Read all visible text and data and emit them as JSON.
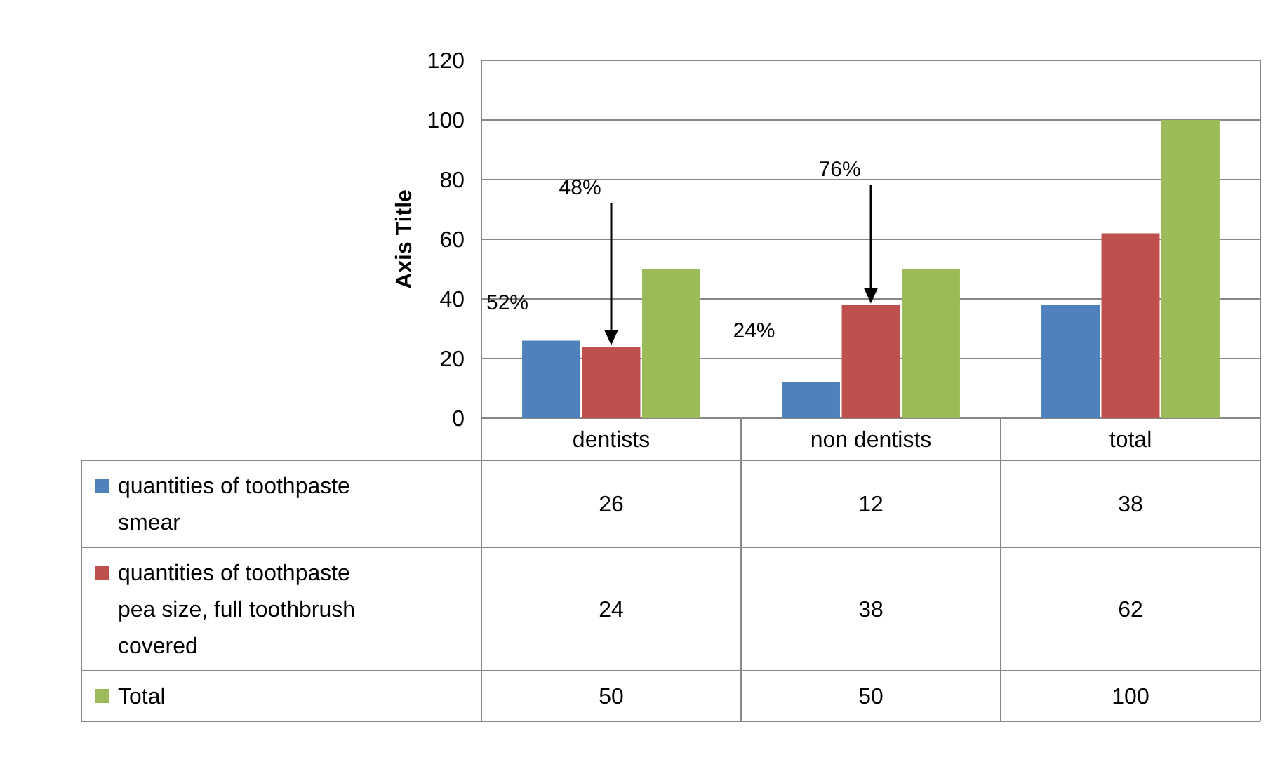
{
  "chart_data": {
    "type": "bar",
    "ylabel": "Axis Title",
    "categories": [
      "dentists",
      "non dentists",
      "total"
    ],
    "series": [
      {
        "name": "quantities of toothpaste smear",
        "color": "#4f81bd",
        "values": [
          26,
          12,
          38
        ]
      },
      {
        "name": "quantities of toothpaste pea size, full toothbrush covered",
        "color": "#c0504d",
        "values": [
          24,
          38,
          62
        ]
      },
      {
        "name": "Total",
        "color": "#9bbb59",
        "values": [
          50,
          50,
          100
        ]
      }
    ],
    "ylim": [
      0,
      120
    ],
    "yticks": [
      0,
      20,
      40,
      60,
      80,
      100,
      120
    ],
    "grid": "y",
    "legend": "bottom",
    "data_labels": true,
    "annotations": [
      "52%",
      "48%",
      "24%",
      "76%"
    ]
  }
}
